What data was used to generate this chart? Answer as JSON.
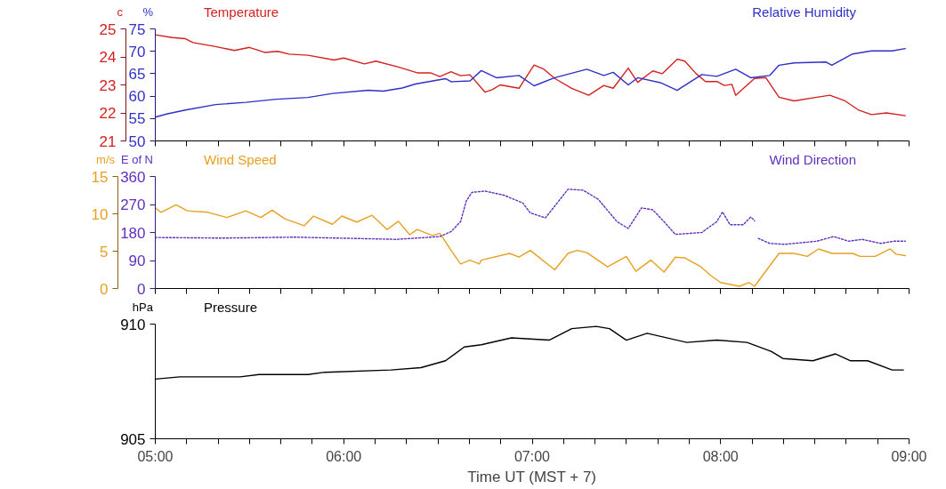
{
  "chart_data": [
    {
      "type": "line",
      "ylabel": "c",
      "y2label": "%",
      "xlim": [
        5,
        9
      ],
      "ylim": [
        21,
        25
      ],
      "yticks": [
        21,
        22,
        23,
        24,
        25
      ],
      "y2lim": [
        50,
        75
      ],
      "y2ticks": [
        50,
        55,
        60,
        65,
        70,
        75
      ],
      "tick_labels": "y",
      "line_style": "solid",
      "xticks": [
        {
          "value": 5,
          "label": null
        },
        {
          "value": 5.167,
          "label": null
        },
        {
          "value": 5.333,
          "label": null
        },
        {
          "value": 5.5,
          "label": null
        },
        {
          "value": 5.667,
          "label": null
        },
        {
          "value": 5.833,
          "label": null
        },
        {
          "value": 6,
          "label": null
        },
        {
          "value": 6.167,
          "label": null
        },
        {
          "value": 6.333,
          "label": null
        },
        {
          "value": 6.5,
          "label": null
        },
        {
          "value": 6.667,
          "label": null
        },
        {
          "value": 6.833,
          "label": null
        },
        {
          "value": 7,
          "label": null
        },
        {
          "value": 7.167,
          "label": null
        },
        {
          "value": 7.333,
          "label": null
        },
        {
          "value": 7.5,
          "label": null
        },
        {
          "value": 7.667,
          "label": null
        },
        {
          "value": 7.833,
          "label": null
        },
        {
          "value": 8,
          "label": null
        },
        {
          "value": 8.167,
          "label": null
        },
        {
          "value": 8.333,
          "label": null
        },
        {
          "value": 8.5,
          "label": null
        },
        {
          "value": 8.667,
          "label": null
        },
        {
          "value": 8.833,
          "label": null
        },
        {
          "value": 9,
          "label": null
        }
      ],
      "series": [
        {
          "name": "Temperature",
          "color": "#d42020",
          "x": [
            5.0,
            5.09,
            5.16,
            5.2,
            5.32,
            5.42,
            5.5,
            5.58,
            5.65,
            5.71,
            5.81,
            5.95,
            6.0,
            6.11,
            6.17,
            6.29,
            6.39,
            6.46,
            6.51,
            6.57,
            6.62,
            6.67,
            6.75,
            6.79,
            6.83,
            6.93,
            7.01,
            7.06,
            7.12,
            7.21,
            7.3,
            7.38,
            7.43,
            7.51,
            7.56,
            7.64,
            7.69,
            7.77,
            7.81,
            7.87,
            7.92,
            7.98,
            8.02,
            8.06,
            8.08,
            8.18,
            8.24,
            8.31,
            8.39,
            8.51,
            8.58,
            8.66,
            8.73,
            8.8,
            8.88,
            8.98
          ],
          "values": [
            24.79,
            24.69,
            24.65,
            24.51,
            24.37,
            24.23,
            24.34,
            24.16,
            24.2,
            24.1,
            24.06,
            23.89,
            23.96,
            23.75,
            23.85,
            23.64,
            23.43,
            23.43,
            23.3,
            23.47,
            23.33,
            23.36,
            22.74,
            22.84,
            23.0,
            22.88,
            23.71,
            23.57,
            23.23,
            22.88,
            22.63,
            22.98,
            22.88,
            23.6,
            23.09,
            23.5,
            23.4,
            23.92,
            23.85,
            23.4,
            23.12,
            23.12,
            22.98,
            23.02,
            22.63,
            23.23,
            23.26,
            22.56,
            22.43,
            22.56,
            22.63,
            22.43,
            22.11,
            21.94,
            22.0,
            21.9
          ]
        },
        {
          "name": "Relative Humidity",
          "color": "#3030c8",
          "axis": "y2",
          "x": [
            5.0,
            5.06,
            5.16,
            5.32,
            5.48,
            5.64,
            5.81,
            5.94,
            6.13,
            6.21,
            6.31,
            6.38,
            6.54,
            6.57,
            6.67,
            6.73,
            6.81,
            6.93,
            7.01,
            7.12,
            7.29,
            7.38,
            7.43,
            7.51,
            7.56,
            7.68,
            7.77,
            7.9,
            7.98,
            8.08,
            8.16,
            8.26,
            8.31,
            8.39,
            8.56,
            8.59,
            8.7,
            8.8,
            8.91,
            8.98
          ],
          "values": [
            55.3,
            56.0,
            56.9,
            58.1,
            58.6,
            59.3,
            59.7,
            60.6,
            61.3,
            61.1,
            61.8,
            62.7,
            63.9,
            63.2,
            63.4,
            65.7,
            64.1,
            64.6,
            62.3,
            64.1,
            66.0,
            64.6,
            65.3,
            62.5,
            64.1,
            63.0,
            61.3,
            64.8,
            64.4,
            66.0,
            64.1,
            64.6,
            66.9,
            67.4,
            67.6,
            66.9,
            69.4,
            70.1,
            70.1,
            70.6
          ]
        }
      ]
    },
    {
      "type": "line",
      "ylabel": "m/s",
      "y2label": "E of N",
      "xlim": [
        5,
        9
      ],
      "ylim": [
        0,
        15
      ],
      "yticks": [
        0,
        5,
        10,
        15
      ],
      "y2lim": [
        0,
        360
      ],
      "y2ticks": [
        0,
        90,
        180,
        270,
        360
      ],
      "tick_labels": "y",
      "xticks": [
        {
          "value": 5,
          "label": null
        },
        {
          "value": 5.167,
          "label": null
        },
        {
          "value": 5.333,
          "label": null
        },
        {
          "value": 5.5,
          "label": null
        },
        {
          "value": 5.667,
          "label": null
        },
        {
          "value": 5.833,
          "label": null
        },
        {
          "value": 6,
          "label": null
        },
        {
          "value": 6.167,
          "label": null
        },
        {
          "value": 6.333,
          "label": null
        },
        {
          "value": 6.5,
          "label": null
        },
        {
          "value": 6.667,
          "label": null
        },
        {
          "value": 6.833,
          "label": null
        },
        {
          "value": 7,
          "label": null
        },
        {
          "value": 7.167,
          "label": null
        },
        {
          "value": 7.333,
          "label": null
        },
        {
          "value": 7.5,
          "label": null
        },
        {
          "value": 7.667,
          "label": null
        },
        {
          "value": 7.833,
          "label": null
        },
        {
          "value": 8,
          "label": null
        },
        {
          "value": 8.167,
          "label": null
        },
        {
          "value": 8.333,
          "label": null
        },
        {
          "value": 8.5,
          "label": null
        },
        {
          "value": 8.667,
          "label": null
        },
        {
          "value": 8.833,
          "label": null
        },
        {
          "value": 9,
          "label": null
        }
      ],
      "series": [
        {
          "name": "Wind Speed",
          "color": "#e8a020",
          "line_style": "solid",
          "x": [
            5.0,
            5.03,
            5.11,
            5.17,
            5.28,
            5.38,
            5.48,
            5.56,
            5.62,
            5.69,
            5.79,
            5.84,
            5.94,
            5.99,
            6.07,
            6.15,
            6.23,
            6.29,
            6.35,
            6.39,
            6.47,
            6.51,
            6.57,
            6.62,
            6.67,
            6.72,
            6.73,
            6.88,
            6.93,
            6.99,
            7.12,
            7.19,
            7.24,
            7.29,
            7.4,
            7.5,
            7.55,
            7.63,
            7.7,
            7.76,
            7.81,
            7.89,
            7.95,
            8.0,
            8.1,
            8.15,
            8.18,
            8.31,
            8.39,
            8.46,
            8.52,
            8.59,
            8.7,
            8.74,
            8.82,
            8.9,
            8.93,
            8.98
          ],
          "values": [
            10.8,
            10.2,
            11.2,
            10.4,
            10.2,
            9.5,
            10.4,
            9.5,
            10.5,
            9.3,
            8.4,
            9.7,
            8.6,
            9.7,
            8.9,
            9.8,
            7.9,
            9.0,
            7.2,
            7.9,
            7.1,
            7.4,
            5.1,
            3.3,
            3.8,
            3.3,
            3.8,
            4.7,
            4.2,
            5.1,
            2.5,
            4.7,
            5.1,
            4.8,
            2.9,
            4.3,
            2.3,
            3.8,
            2.2,
            4.2,
            4.1,
            3.0,
            1.7,
            0.8,
            0.3,
            0.8,
            0.3,
            4.7,
            4.7,
            4.3,
            5.3,
            4.7,
            4.7,
            4.3,
            4.3,
            5.3,
            4.6,
            4.4
          ]
        },
        {
          "name": "Wind Direction",
          "color": "#6030c0",
          "axis": "y2",
          "line_style": "dotted",
          "x": [
            5.0,
            5.36,
            5.74,
            6.28,
            6.51,
            6.57,
            6.62,
            6.65,
            6.68,
            6.75,
            6.85,
            6.95,
            6.99,
            7.07,
            7.12,
            7.19,
            7.27,
            7.35,
            7.45,
            7.51,
            7.58,
            7.64,
            7.69,
            7.76,
            7.9,
            7.98,
            8.01,
            8.05,
            8.12,
            8.16,
            8.18,
            8.19,
            8.2,
            8.26,
            8.34,
            8.51,
            8.6,
            8.68,
            8.75,
            8.85,
            8.92,
            8.98
          ],
          "values": [
            164,
            162,
            165,
            158,
            167,
            183,
            215,
            281,
            309,
            313,
            300,
            275,
            243,
            227,
            265,
            319,
            316,
            287,
            215,
            193,
            259,
            253,
            221,
            174,
            180,
            215,
            246,
            205,
            205,
            230,
            218,
            null,
            161,
            145,
            142,
            152,
            167,
            152,
            158,
            145,
            152,
            152
          ]
        }
      ]
    },
    {
      "type": "line",
      "ylabel": "hPa",
      "xlabel": "Time UT (MST + 7)",
      "xlim": [
        5,
        9
      ],
      "ylim": [
        905,
        910
      ],
      "yticks": [
        905,
        910
      ],
      "line_style": "solid",
      "xticks": [
        {
          "value": 5,
          "label": "05:00"
        },
        {
          "value": 5.167,
          "label": null
        },
        {
          "value": 5.333,
          "label": null
        },
        {
          "value": 5.5,
          "label": null
        },
        {
          "value": 5.667,
          "label": null
        },
        {
          "value": 5.833,
          "label": null
        },
        {
          "value": 6,
          "label": "06:00"
        },
        {
          "value": 6.167,
          "label": null
        },
        {
          "value": 6.333,
          "label": null
        },
        {
          "value": 6.5,
          "label": null
        },
        {
          "value": 6.667,
          "label": null
        },
        {
          "value": 6.833,
          "label": null
        },
        {
          "value": 7,
          "label": "07:00"
        },
        {
          "value": 7.167,
          "label": null
        },
        {
          "value": 7.333,
          "label": null
        },
        {
          "value": 7.5,
          "label": null
        },
        {
          "value": 7.667,
          "label": null
        },
        {
          "value": 7.833,
          "label": null
        },
        {
          "value": 8,
          "label": "08:00"
        },
        {
          "value": 8.167,
          "label": null
        },
        {
          "value": 8.333,
          "label": null
        },
        {
          "value": 8.5,
          "label": null
        },
        {
          "value": 8.667,
          "label": null
        },
        {
          "value": 8.833,
          "label": null
        },
        {
          "value": 9,
          "label": "09:00"
        }
      ],
      "series": [
        {
          "name": "Pressure",
          "color": "#000000",
          "x": [
            5.0,
            5.13,
            5.45,
            5.55,
            5.81,
            5.9,
            6.25,
            6.41,
            6.54,
            6.64,
            6.73,
            6.89,
            7.09,
            7.21,
            7.34,
            7.41,
            7.5,
            7.61,
            7.82,
            7.98,
            8.14,
            8.27,
            8.33,
            8.49,
            8.61,
            8.69,
            8.78,
            8.91,
            8.97
          ],
          "values": [
            907.6,
            907.7,
            907.7,
            907.8,
            907.8,
            907.9,
            908.0,
            908.1,
            908.4,
            909.0,
            909.1,
            909.4,
            909.3,
            909.8,
            909.9,
            909.8,
            909.3,
            909.6,
            909.2,
            909.3,
            909.2,
            908.8,
            908.5,
            908.4,
            908.7,
            908.4,
            908.4,
            908.0,
            908.0
          ]
        }
      ]
    }
  ]
}
